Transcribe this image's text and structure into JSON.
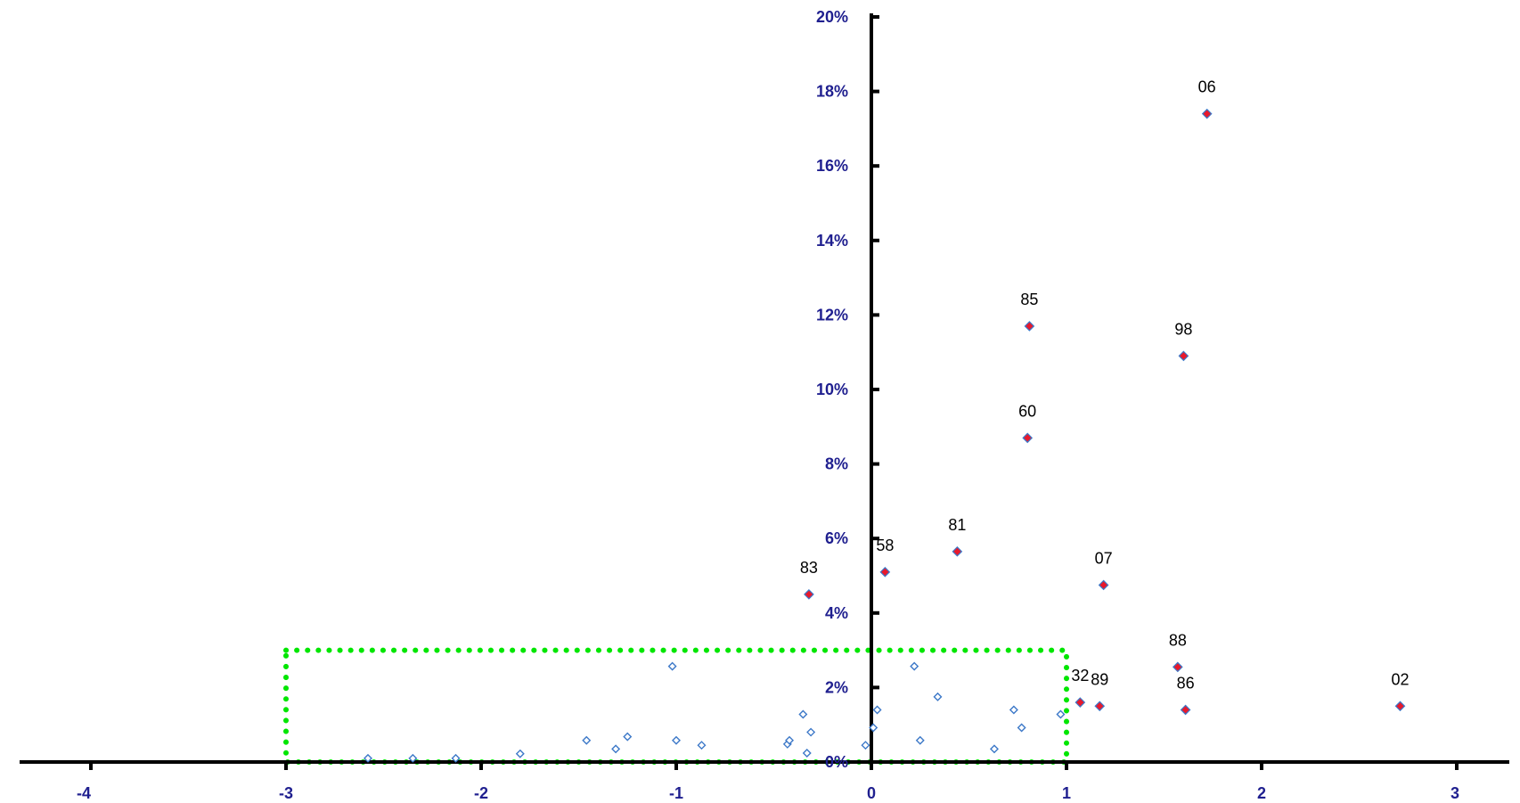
{
  "chart_data": {
    "type": "scatter",
    "title": "",
    "xlabel": "",
    "ylabel": "",
    "xlim": [
      -4,
      3
    ],
    "ylim": [
      0,
      20
    ],
    "x_ticks": [
      "-4",
      "-3",
      "-2",
      "-1",
      "0",
      "1",
      "2",
      "3"
    ],
    "y_ticks": [
      "0%",
      "2%",
      "4%",
      "6%",
      "8%",
      "10%",
      "12%",
      "14%",
      "16%",
      "18%",
      "20%"
    ],
    "grid": false,
    "legend": "none",
    "series": [
      {
        "marker": "diamond-hollow",
        "color": "#3c78c8",
        "points": [
          {
            "x": -2.58,
            "y": 0.1
          },
          {
            "x": -2.35,
            "y": 0.1
          },
          {
            "x": -2.13,
            "y": 0.1
          },
          {
            "x": -1.8,
            "y": 0.22
          },
          {
            "x": -1.46,
            "y": 0.58
          },
          {
            "x": -1.31,
            "y": 0.35
          },
          {
            "x": -1.25,
            "y": 0.68
          },
          {
            "x": -1.02,
            "y": 2.57
          },
          {
            "x": -1.0,
            "y": 0.58
          },
          {
            "x": -0.87,
            "y": 0.45
          },
          {
            "x": -0.43,
            "y": 0.48
          },
          {
            "x": -0.42,
            "y": 0.58
          },
          {
            "x": -0.35,
            "y": 1.28
          },
          {
            "x": -0.33,
            "y": 0.24
          },
          {
            "x": -0.31,
            "y": 0.8
          },
          {
            "x": -0.03,
            "y": 0.45
          },
          {
            "x": 0.01,
            "y": 0.92
          },
          {
            "x": 0.03,
            "y": 1.4
          },
          {
            "x": 0.22,
            "y": 2.57
          },
          {
            "x": 0.25,
            "y": 0.58
          },
          {
            "x": 0.34,
            "y": 1.75
          },
          {
            "x": 0.63,
            "y": 0.35
          },
          {
            "x": 0.73,
            "y": 1.4
          },
          {
            "x": 0.77,
            "y": 0.92
          },
          {
            "x": 0.97,
            "y": 1.28
          }
        ]
      },
      {
        "marker": "diamond-filled",
        "color": "#e8192c",
        "edge_color": "#3c78c8",
        "points": [
          {
            "label": "83",
            "x": -0.32,
            "y": 4.5
          },
          {
            "label": "58",
            "x": 0.07,
            "y": 5.1
          },
          {
            "label": "81",
            "x": 0.44,
            "y": 5.65
          },
          {
            "label": "60",
            "x": 0.8,
            "y": 8.7
          },
          {
            "label": "85",
            "x": 0.81,
            "y": 11.7
          },
          {
            "label": "07",
            "x": 1.19,
            "y": 4.75
          },
          {
            "label": "32",
            "x": 1.07,
            "y": 1.6
          },
          {
            "label": "89",
            "x": 1.17,
            "y": 1.5
          },
          {
            "label": "88",
            "x": 1.57,
            "y": 2.55
          },
          {
            "label": "86",
            "x": 1.61,
            "y": 1.4
          },
          {
            "label": "98",
            "x": 1.6,
            "y": 10.9
          },
          {
            "label": "06",
            "x": 1.72,
            "y": 17.4
          },
          {
            "label": "02",
            "x": 2.71,
            "y": 1.5
          }
        ]
      }
    ],
    "annotations": [
      {
        "type": "dotted-rectangle",
        "color": "#00e600",
        "x_range": [
          -3,
          1
        ],
        "y_range": [
          0,
          3
        ]
      }
    ]
  }
}
